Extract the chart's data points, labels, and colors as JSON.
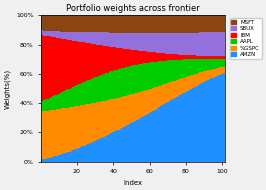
{
  "title": "Portfolio weights across frontier",
  "xlabel": "Index",
  "ylabel": "Weights(%)",
  "n_points": 101,
  "legend_labels": [
    "MSFT",
    "SBUX",
    "IBM",
    "AAPL",
    "%GSPC",
    "AMZN"
  ],
  "colors": [
    "#8B4513",
    "#9370DB",
    "#FF0000",
    "#00CC00",
    "#FF8C00",
    "#1E90FF"
  ],
  "yticks": [
    0,
    20,
    40,
    60,
    80,
    100
  ],
  "ytick_labels": [
    "0%",
    "20%",
    "40%",
    "60%",
    "80%",
    "100%"
  ],
  "xticks": [
    20,
    40,
    60,
    80,
    100
  ],
  "background_color": "#f0f0f0"
}
